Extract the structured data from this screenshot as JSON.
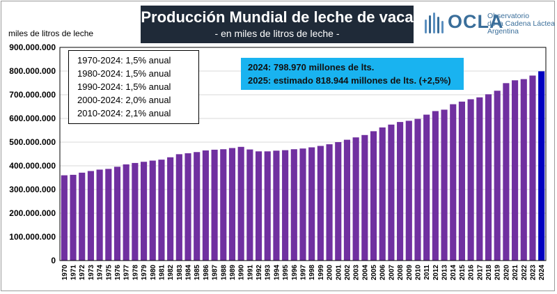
{
  "header": {
    "title": "Producción Mundial de leche de vaca",
    "subtitle": "- en miles de litros de leche -"
  },
  "logo": {
    "name": "OCLA",
    "lines": [
      "Observatorio",
      "de la Cadena Láctea",
      "Argentina"
    ],
    "color": "#3a6e9a"
  },
  "growth_box": {
    "lines": [
      "1970-2024:  1,5% anual",
      "1980-2024:  1,5% anual",
      "1990-2024:  1,5% anual",
      "2000-2024:  2,0% anual",
      "2010-2024:  2,1% anual"
    ]
  },
  "stat_box": {
    "lines": [
      "2024:  798.970  millones de lts.",
      "2025:  estimado 818.944  millones de lts. (+2,5%)"
    ],
    "color": "#19b3f0"
  },
  "chart_data": {
    "type": "bar",
    "ylabel": "miles de litros de leche",
    "ylim": [
      0,
      900000000
    ],
    "yticks": [
      {
        "value": 0,
        "label": "0"
      },
      {
        "value": 100000000,
        "label": "100.000.000"
      },
      {
        "value": 200000000,
        "label": "200.000.000"
      },
      {
        "value": 300000000,
        "label": "300.000.000"
      },
      {
        "value": 400000000,
        "label": "400.000.000"
      },
      {
        "value": 500000000,
        "label": "500.000.000"
      },
      {
        "value": 600000000,
        "label": "600.000.000"
      },
      {
        "value": 700000000,
        "label": "700.000.000"
      },
      {
        "value": 800000000,
        "label": "800.000.000"
      },
      {
        "value": 900000000,
        "label": "900.000.000"
      }
    ],
    "grid": true,
    "bar_color": "#7030a0",
    "highlight_color": "#0000c0",
    "highlight_category": "2024",
    "categories": [
      "1970",
      "1971",
      "1972",
      "1973",
      "1974",
      "1975",
      "1976",
      "1977",
      "1978",
      "1979",
      "1980",
      "1981",
      "1982",
      "1983",
      "1984",
      "1985",
      "1986",
      "1987",
      "1988",
      "1989",
      "1990",
      "1991",
      "1992",
      "1993",
      "1994",
      "1995",
      "1996",
      "1997",
      "1998",
      "1999",
      "2000",
      "2001",
      "2002",
      "2003",
      "2004",
      "2005",
      "2006",
      "2007",
      "2008",
      "2009",
      "2010",
      "2011",
      "2012",
      "2013",
      "2014",
      "2015",
      "2016",
      "2017",
      "2018",
      "2019",
      "2020",
      "2021",
      "2022",
      "2023",
      "2024"
    ],
    "values": [
      360000000,
      362000000,
      371000000,
      378000000,
      384000000,
      387000000,
      396000000,
      406000000,
      412000000,
      417000000,
      422000000,
      426000000,
      436000000,
      449000000,
      453000000,
      458000000,
      465000000,
      468000000,
      470000000,
      475000000,
      480000000,
      469000000,
      461000000,
      461000000,
      464000000,
      466000000,
      470000000,
      473000000,
      478000000,
      484000000,
      491000000,
      500000000,
      510000000,
      520000000,
      530000000,
      546000000,
      562000000,
      574000000,
      585000000,
      590000000,
      598000000,
      616000000,
      631000000,
      637000000,
      660000000,
      671000000,
      681000000,
      689000000,
      702000000,
      717000000,
      749000000,
      761000000,
      766000000,
      781000000,
      798970000
    ]
  }
}
